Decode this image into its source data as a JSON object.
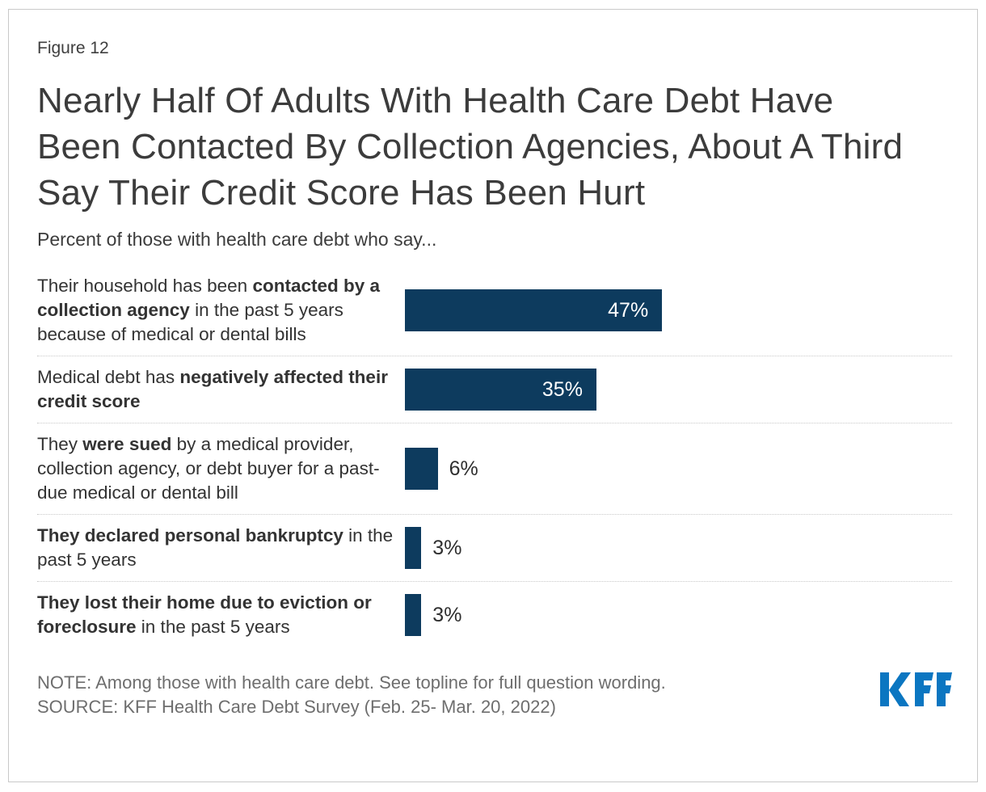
{
  "header": {
    "figure_label": "Figure 12",
    "title": "Nearly Half Of Adults With Health Care Debt Have Been Contacted By Collection Agencies, About A Third Say Their Credit Score Has Been Hurt",
    "subtitle": "Percent of those with health care debt who say..."
  },
  "chart_data": {
    "type": "bar",
    "orientation": "horizontal",
    "unit": "percent",
    "xlim": [
      0,
      100
    ],
    "grid": false,
    "legend": "none",
    "title": "Nearly Half Of Adults With Health Care Debt Have Been Contacted By Collection Agencies, About A Third Say Their Credit Score Has Been Hurt",
    "xlabel": "",
    "ylabel": "",
    "categories": [
      "Their household has been contacted by a collection agency in the past 5 years because of medical or dental bills",
      "Medical debt has negatively affected their credit score",
      "They were sued by a medical provider, collection agency, or debt buyer for a past-due medical or dental bill",
      "They declared personal bankruptcy in the past 5 years",
      "They lost their home due to eviction or foreclosure in the past 5 years"
    ],
    "values": [
      47,
      35,
      6,
      3,
      3
    ],
    "rows": [
      {
        "value": 47,
        "value_label": "47%",
        "segments": [
          {
            "text": "Their household has been ",
            "bold": false
          },
          {
            "text": "contacted by a collection agency",
            "bold": true
          },
          {
            "text": " in the past 5 years because of medical or dental bills",
            "bold": false
          }
        ]
      },
      {
        "value": 35,
        "value_label": "35%",
        "segments": [
          {
            "text": "Medical debt has ",
            "bold": false
          },
          {
            "text": "negatively affected their credit score",
            "bold": true
          }
        ]
      },
      {
        "value": 6,
        "value_label": "6%",
        "segments": [
          {
            "text": "They ",
            "bold": false
          },
          {
            "text": "were sued",
            "bold": true
          },
          {
            "text": " by a medical provider, collection agency, or debt buyer for a past-due medical or dental bill",
            "bold": false
          }
        ]
      },
      {
        "value": 3,
        "value_label": "3%",
        "segments": [
          {
            "text": "They declared personal bankruptcy",
            "bold": true
          },
          {
            "text": " in the past 5 years",
            "bold": false
          }
        ]
      },
      {
        "value": 3,
        "value_label": "3%",
        "segments": [
          {
            "text": "They lost their home due to eviction or foreclosure",
            "bold": true
          },
          {
            "text": " in the past 5 years",
            "bold": false
          }
        ]
      }
    ]
  },
  "footer": {
    "note": "NOTE: Among those with health care debt. See topline for full question wording.",
    "source": "SOURCE: KFF Health Care Debt Survey (Feb. 25- Mar. 20, 2022)",
    "logo_text": "KFF"
  },
  "theme": {
    "bar_color": "#0d3b5e",
    "logo_color": "#0b76c1",
    "text_color": "#333333",
    "muted_color": "#6e6e6e",
    "separator_color": "#c9c9c9"
  }
}
